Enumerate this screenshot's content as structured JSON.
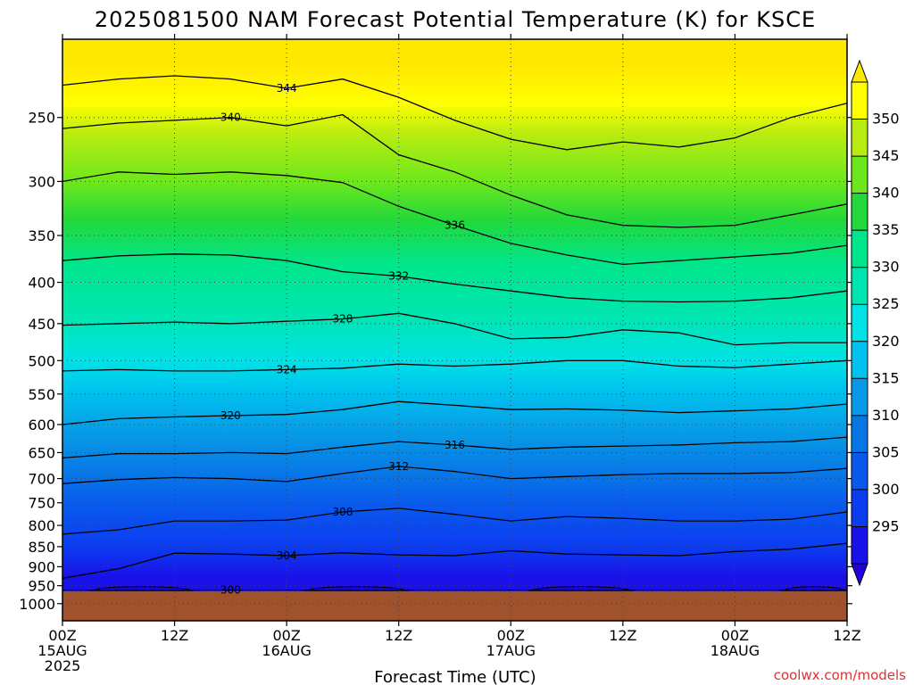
{
  "chart_data": {
    "type": "heatmap",
    "title": "2025081500 NAM Forecast Potential Temperature (K) for KSCE",
    "xlabel": "Forecast Time (UTC)",
    "ylabel": "",
    "credit": "coolwx.com/models",
    "x_ticks": [
      {
        "hours": 0,
        "lines": [
          "00Z",
          "15AUG",
          "2025"
        ]
      },
      {
        "hours": 12,
        "lines": [
          "12Z"
        ]
      },
      {
        "hours": 24,
        "lines": [
          "00Z",
          "16AUG"
        ]
      },
      {
        "hours": 36,
        "lines": [
          "12Z"
        ]
      },
      {
        "hours": 48,
        "lines": [
          "00Z",
          "17AUG"
        ]
      },
      {
        "hours": 60,
        "lines": [
          "12Z"
        ]
      },
      {
        "hours": 72,
        "lines": [
          "00Z",
          "18AUG"
        ]
      },
      {
        "hours": 84,
        "lines": [
          "12Z"
        ]
      }
    ],
    "xlim": [
      0,
      84
    ],
    "y_ticks": [
      250,
      300,
      350,
      400,
      450,
      500,
      550,
      600,
      650,
      700,
      750,
      800,
      850,
      900,
      950,
      1000
    ],
    "ylim_hPa": [
      1050,
      200
    ],
    "y_scale": "log",
    "grid": true,
    "colorbar": {
      "levels": [
        295,
        300,
        305,
        310,
        315,
        320,
        325,
        330,
        335,
        340,
        345,
        350
      ],
      "labels": [
        "295",
        "300",
        "305",
        "310",
        "315",
        "320",
        "325",
        "330",
        "335",
        "340",
        "345",
        "350"
      ],
      "colors": [
        "#1a10e8",
        "#0b3cf0",
        "#0a58ee",
        "#0877e6",
        "#0798e6",
        "#00c2ee",
        "#00e2e6",
        "#00e6b0",
        "#00e68c",
        "#22d83a",
        "#6ee81c",
        "#b8ec10",
        "#ffff00"
      ],
      "below_color": "#2200dd",
      "above_color": "#ffe800"
    },
    "contours": [
      {
        "level": 300,
        "label": "300",
        "pressure": [
          962,
          962,
          962,
          962,
          962,
          962,
          962,
          962,
          962,
          962,
          962,
          962,
          962,
          962,
          962
        ]
      },
      {
        "level": 304,
        "label": "304",
        "pressure": [
          930,
          905,
          866,
          868,
          872,
          865,
          870,
          872,
          860,
          868,
          870,
          872,
          862,
          856,
          842
        ]
      },
      {
        "level": 308,
        "label": "308",
        "pressure": [
          820,
          810,
          790,
          790,
          788,
          770,
          762,
          775,
          790,
          780,
          784,
          790,
          790,
          786,
          770
        ]
      },
      {
        "level": 312,
        "label": "312",
        "pressure": [
          710,
          702,
          698,
          700,
          706,
          690,
          676,
          686,
          700,
          696,
          692,
          690,
          690,
          688,
          680
        ]
      },
      {
        "level": 316,
        "label": "316",
        "pressure": [
          660,
          652,
          652,
          650,
          652,
          640,
          630,
          636,
          644,
          640,
          638,
          636,
          632,
          630,
          622
        ]
      },
      {
        "level": 320,
        "label": "320",
        "pressure": [
          600,
          590,
          587,
          585,
          583,
          575,
          562,
          568,
          575,
          574,
          576,
          580,
          577,
          574,
          566
        ]
      },
      {
        "level": 324,
        "label": "324",
        "pressure": [
          515,
          513,
          515,
          515,
          513,
          511,
          505,
          508,
          505,
          500,
          500,
          508,
          510,
          505,
          500
        ]
      },
      {
        "level": 328,
        "label": "328",
        "pressure": [
          452,
          450,
          448,
          450,
          447,
          444,
          437,
          450,
          470,
          468,
          458,
          462,
          478,
          475,
          475
        ]
      },
      {
        "level": 332,
        "label": "332",
        "pressure": [
          376,
          371,
          369,
          370,
          376,
          388,
          393,
          402,
          410,
          418,
          422,
          423,
          422,
          418,
          410
        ]
      },
      {
        "level": 336,
        "label": "336",
        "pressure": [
          300,
          292,
          294,
          292,
          295,
          301,
          322,
          340,
          358,
          370,
          380,
          376,
          372,
          368,
          360
        ]
      },
      {
        "level": 340,
        "label": "340",
        "pressure": [
          258,
          254,
          252,
          250,
          256,
          248,
          278,
          292,
          312,
          330,
          340,
          342,
          340,
          330,
          320
        ]
      },
      {
        "level": 344,
        "label": "344",
        "pressure": [
          228,
          224,
          222,
          224,
          230,
          224,
          236,
          252,
          266,
          274,
          268,
          272,
          265,
          250,
          240
        ]
      }
    ],
    "contour_x_hours": [
      0,
      6,
      12,
      18,
      24,
      30,
      36,
      42,
      48,
      54,
      60,
      66,
      72,
      78,
      84
    ],
    "surface_pressure_hPa": 965,
    "ground_color": "#a0522d"
  }
}
